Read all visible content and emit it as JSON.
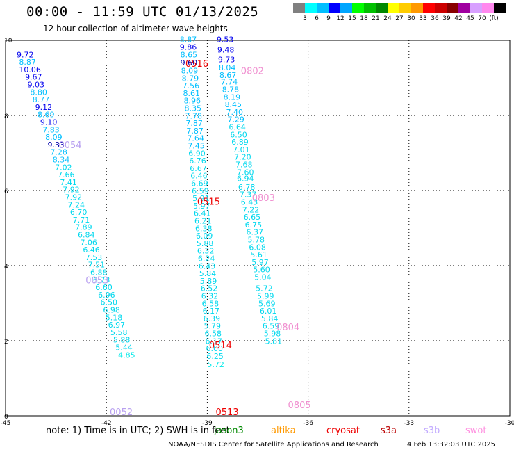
{
  "header": {
    "title": "00:00 - 11:59 UTC 01/13/2025",
    "subtitle": "12 hour collection of altimeter wave heights"
  },
  "colorbar": {
    "colors": [
      "#808080",
      "#00ffff",
      "#00bfff",
      "#0000ff",
      "#00a6ff",
      "#00ff00",
      "#00c000",
      "#008800",
      "#ffff00",
      "#ffcc00",
      "#ff9900",
      "#ff0000",
      "#cc0000",
      "#880000",
      "#a000a0",
      "#d8a0ff",
      "#ff88ee",
      "#000000"
    ],
    "labels": [
      "3",
      "6",
      "9",
      "12",
      "15",
      "18",
      "21",
      "24",
      "27",
      "30",
      "33",
      "36",
      "39",
      "42",
      "45",
      "70",
      "(ft)"
    ]
  },
  "chart_data": {
    "type": "scatter",
    "xlim": [
      -45,
      -30
    ],
    "ylim": [
      0,
      10
    ],
    "x_ticks": [
      "-45",
      "-42",
      "-39",
      "-36",
      "-33",
      "-30"
    ],
    "y_ticks": [
      "0",
      "2",
      "4",
      "6",
      "8",
      "10"
    ],
    "grid": true,
    "colors": {
      "c1": "#00bfff",
      "c2": "#0000ee",
      "c3": "#0000aa",
      "c4": "#00d8ee",
      "c5": "#00e8e8",
      "red": "#ee0000",
      "violet": "#b8a0f0",
      "pink": "#f090d0"
    },
    "tracks": [
      {
        "name": "track-a",
        "points": [
          {
            "x": -44.67,
            "y": 9.55,
            "v": "9.72",
            "c": "c2"
          },
          {
            "x": -44.6,
            "y": 9.35,
            "v": "8.87",
            "c": "c1"
          },
          {
            "x": -44.6,
            "y": 9.15,
            "v": "10.06",
            "c": "c2"
          },
          {
            "x": -44.42,
            "y": 8.95,
            "v": "9.67",
            "c": "c2"
          },
          {
            "x": -44.35,
            "y": 8.75,
            "v": "9.03",
            "c": "c2"
          },
          {
            "x": -44.27,
            "y": 8.55,
            "v": "8.80",
            "c": "c1"
          },
          {
            "x": -44.2,
            "y": 8.35,
            "v": "8.77",
            "c": "c1"
          },
          {
            "x": -44.12,
            "y": 8.15,
            "v": "9.12",
            "c": "c2"
          },
          {
            "x": -44.05,
            "y": 7.95,
            "v": "8.69",
            "c": "c1"
          },
          {
            "x": -43.97,
            "y": 7.75,
            "v": "9.10",
            "c": "c2"
          },
          {
            "x": -43.9,
            "y": 7.55,
            "v": "7.83",
            "c": "c1"
          },
          {
            "x": -43.82,
            "y": 7.35,
            "v": "8.09",
            "c": "c1"
          },
          {
            "x": -43.75,
            "y": 7.15,
            "v": "9.33",
            "c": "c3"
          },
          {
            "x": -43.67,
            "y": 6.95,
            "v": "7.28",
            "c": "c1"
          },
          {
            "x": -43.6,
            "y": 6.75,
            "v": "8.34",
            "c": "c1"
          },
          {
            "x": -43.53,
            "y": 6.55,
            "v": "7.02",
            "c": "c4"
          },
          {
            "x": -43.45,
            "y": 6.35,
            "v": "7.66",
            "c": "c4"
          },
          {
            "x": -43.38,
            "y": 6.15,
            "v": "7.41",
            "c": "c4"
          },
          {
            "x": -43.3,
            "y": 5.95,
            "v": "7.92",
            "c": "c4"
          },
          {
            "x": -43.23,
            "y": 5.75,
            "v": "7.92",
            "c": "c4"
          },
          {
            "x": -43.15,
            "y": 5.55,
            "v": "7.24",
            "c": "c4"
          },
          {
            "x": -43.08,
            "y": 5.35,
            "v": "6.70",
            "c": "c4"
          },
          {
            "x": -43.0,
            "y": 5.15,
            "v": "7.71",
            "c": "c4"
          },
          {
            "x": -42.93,
            "y": 4.95,
            "v": "7.89",
            "c": "c4"
          },
          {
            "x": -42.85,
            "y": 4.75,
            "v": "6.84",
            "c": "c4"
          },
          {
            "x": -42.78,
            "y": 4.55,
            "v": "7.06",
            "c": "c4"
          },
          {
            "x": -42.7,
            "y": 4.35,
            "v": "6.46",
            "c": "c4"
          },
          {
            "x": -42.63,
            "y": 4.15,
            "v": "7.53",
            "c": "c4"
          },
          {
            "x": -42.55,
            "y": 3.95,
            "v": "7.51",
            "c": "c4"
          },
          {
            "x": -42.48,
            "y": 3.75,
            "v": "6.88",
            "c": "c4"
          },
          {
            "x": -42.4,
            "y": 3.55,
            "v": "6.73",
            "c": "c4"
          },
          {
            "x": -42.33,
            "y": 3.35,
            "v": "6.60",
            "c": "c4"
          },
          {
            "x": -42.25,
            "y": 3.15,
            "v": "6.96",
            "c": "c4"
          },
          {
            "x": -42.18,
            "y": 2.95,
            "v": "6.50",
            "c": "c4"
          },
          {
            "x": -42.1,
            "y": 2.75,
            "v": "6.98",
            "c": "c4"
          },
          {
            "x": -42.03,
            "y": 2.55,
            "v": "5.18",
            "c": "c4"
          },
          {
            "x": -41.95,
            "y": 2.35,
            "v": "6.97",
            "c": "c4"
          },
          {
            "x": -41.88,
            "y": 2.15,
            "v": "5.58",
            "c": "c4"
          },
          {
            "x": -41.8,
            "y": 1.95,
            "v": "5.88",
            "c": "c4"
          },
          {
            "x": -41.73,
            "y": 1.75,
            "v": "5.44",
            "c": "c4"
          },
          {
            "x": -41.65,
            "y": 1.55,
            "v": "4.85",
            "c": "c5"
          }
        ]
      },
      {
        "name": "track-b",
        "points": [
          {
            "x": -39.82,
            "y": 9.95,
            "v": "8.87",
            "c": "c1"
          },
          {
            "x": -39.82,
            "y": 9.75,
            "v": "9.86",
            "c": "c2"
          },
          {
            "x": -39.8,
            "y": 9.55,
            "v": "8.65",
            "c": "c1"
          },
          {
            "x": -39.8,
            "y": 9.33,
            "v": "9.60",
            "c": "c3"
          },
          {
            "x": -39.78,
            "y": 9.12,
            "v": "8.09",
            "c": "c1"
          },
          {
            "x": -39.76,
            "y": 8.92,
            "v": "8.79",
            "c": "c1"
          },
          {
            "x": -39.74,
            "y": 8.72,
            "v": "7.56",
            "c": "c1"
          },
          {
            "x": -39.72,
            "y": 8.52,
            "v": "8.61",
            "c": "c1"
          },
          {
            "x": -39.7,
            "y": 8.32,
            "v": "8.96",
            "c": "c1"
          },
          {
            "x": -39.68,
            "y": 8.12,
            "v": "8.35",
            "c": "c1"
          },
          {
            "x": -39.66,
            "y": 7.92,
            "v": "7.78",
            "c": "c1"
          },
          {
            "x": -39.64,
            "y": 7.72,
            "v": "7.87",
            "c": "c1"
          },
          {
            "x": -39.62,
            "y": 7.52,
            "v": "7.87",
            "c": "c1"
          },
          {
            "x": -39.6,
            "y": 7.32,
            "v": "7.64",
            "c": "c1"
          },
          {
            "x": -39.58,
            "y": 7.12,
            "v": "7.45",
            "c": "c1"
          },
          {
            "x": -39.56,
            "y": 6.92,
            "v": "6.90",
            "c": "c4"
          },
          {
            "x": -39.54,
            "y": 6.72,
            "v": "6.76",
            "c": "c4"
          },
          {
            "x": -39.52,
            "y": 6.52,
            "v": "6.67",
            "c": "c4"
          },
          {
            "x": -39.5,
            "y": 6.32,
            "v": "6.46",
            "c": "c4"
          },
          {
            "x": -39.48,
            "y": 6.12,
            "v": "6.69",
            "c": "c4"
          },
          {
            "x": -39.46,
            "y": 5.92,
            "v": "6.59",
            "c": "c4"
          },
          {
            "x": -39.44,
            "y": 5.72,
            "v": "5.91",
            "c": "c4"
          },
          {
            "x": -39.42,
            "y": 5.52,
            "v": "5.97",
            "c": "c4"
          },
          {
            "x": -39.4,
            "y": 5.32,
            "v": "6.41",
            "c": "c4"
          },
          {
            "x": -39.38,
            "y": 5.12,
            "v": "6.21",
            "c": "c4"
          },
          {
            "x": -39.36,
            "y": 4.92,
            "v": "6.38",
            "c": "c4"
          },
          {
            "x": -39.34,
            "y": 4.72,
            "v": "6.09",
            "c": "c4"
          },
          {
            "x": -39.32,
            "y": 4.52,
            "v": "5.88",
            "c": "c4"
          },
          {
            "x": -39.3,
            "y": 4.32,
            "v": "6.32",
            "c": "c4"
          },
          {
            "x": -39.28,
            "y": 4.12,
            "v": "6.24",
            "c": "c4"
          },
          {
            "x": -39.26,
            "y": 3.92,
            "v": "6.43",
            "c": "c4"
          },
          {
            "x": -39.24,
            "y": 3.72,
            "v": "5.84",
            "c": "c4"
          },
          {
            "x": -39.22,
            "y": 3.52,
            "v": "5.89",
            "c": "c4"
          },
          {
            "x": -39.2,
            "y": 3.32,
            "v": "6.52",
            "c": "c4"
          },
          {
            "x": -39.18,
            "y": 3.12,
            "v": "6.32",
            "c": "c4"
          },
          {
            "x": -39.16,
            "y": 2.92,
            "v": "6.58",
            "c": "c4"
          },
          {
            "x": -39.14,
            "y": 2.72,
            "v": "6.17",
            "c": "c4"
          },
          {
            "x": -39.12,
            "y": 2.52,
            "v": "6.39",
            "c": "c4"
          },
          {
            "x": -39.1,
            "y": 2.32,
            "v": "5.79",
            "c": "c4"
          },
          {
            "x": -39.08,
            "y": 2.12,
            "v": "6.58",
            "c": "c4"
          },
          {
            "x": -39.06,
            "y": 1.92,
            "v": "6.17",
            "c": "c4"
          },
          {
            "x": -39.04,
            "y": 1.72,
            "v": "6.00",
            "c": "c4"
          },
          {
            "x": -39.02,
            "y": 1.52,
            "v": "6.25",
            "c": "c4"
          },
          {
            "x": -39.0,
            "y": 1.3,
            "v": "5.72",
            "c": "c5"
          }
        ]
      },
      {
        "name": "track-c",
        "points": [
          {
            "x": -38.72,
            "y": 9.95,
            "v": "9.53",
            "c": "c2"
          },
          {
            "x": -38.7,
            "y": 9.68,
            "v": "9.48",
            "c": "c2"
          },
          {
            "x": -38.68,
            "y": 9.42,
            "v": "9.73",
            "c": "c2"
          },
          {
            "x": -38.66,
            "y": 9.2,
            "v": "8.04",
            "c": "c1"
          },
          {
            "x": -38.64,
            "y": 9.0,
            "v": "8.67",
            "c": "c1"
          },
          {
            "x": -38.6,
            "y": 8.82,
            "v": "7.74",
            "c": "c1"
          },
          {
            "x": -38.56,
            "y": 8.62,
            "v": "8.78",
            "c": "c1"
          },
          {
            "x": -38.52,
            "y": 8.42,
            "v": "8.19",
            "c": "c1"
          },
          {
            "x": -38.48,
            "y": 8.22,
            "v": "8.45",
            "c": "c1"
          },
          {
            "x": -38.44,
            "y": 8.02,
            "v": "7.40",
            "c": "c1"
          },
          {
            "x": -38.4,
            "y": 7.82,
            "v": "7.29",
            "c": "c1"
          },
          {
            "x": -38.36,
            "y": 7.62,
            "v": "6.64",
            "c": "c4"
          },
          {
            "x": -38.32,
            "y": 7.42,
            "v": "6.50",
            "c": "c4"
          },
          {
            "x": -38.28,
            "y": 7.22,
            "v": "6.89",
            "c": "c4"
          },
          {
            "x": -38.24,
            "y": 7.02,
            "v": "7.01",
            "c": "c4"
          },
          {
            "x": -38.2,
            "y": 6.82,
            "v": "7.20",
            "c": "c4"
          },
          {
            "x": -38.16,
            "y": 6.62,
            "v": "7.68",
            "c": "c4"
          },
          {
            "x": -38.12,
            "y": 6.42,
            "v": "7.60",
            "c": "c4"
          },
          {
            "x": -38.12,
            "y": 6.25,
            "v": "6.94",
            "c": "c4"
          },
          {
            "x": -38.08,
            "y": 6.02,
            "v": "6.78",
            "c": "c4"
          },
          {
            "x": -38.04,
            "y": 5.82,
            "v": "7.37",
            "c": "c4"
          },
          {
            "x": -38.0,
            "y": 5.62,
            "v": "6.43",
            "c": "c4"
          },
          {
            "x": -37.96,
            "y": 5.42,
            "v": "7.22",
            "c": "c4"
          },
          {
            "x": -37.92,
            "y": 5.22,
            "v": "6.65",
            "c": "c4"
          },
          {
            "x": -37.88,
            "y": 5.02,
            "v": "6.75",
            "c": "c4"
          },
          {
            "x": -37.84,
            "y": 4.82,
            "v": "6.37",
            "c": "c4"
          },
          {
            "x": -37.8,
            "y": 4.62,
            "v": "5.78",
            "c": "c4"
          },
          {
            "x": -37.76,
            "y": 4.42,
            "v": "6.08",
            "c": "c4"
          },
          {
            "x": -37.72,
            "y": 4.22,
            "v": "5.61",
            "c": "c4"
          },
          {
            "x": -37.68,
            "y": 4.02,
            "v": "5.97",
            "c": "c4"
          },
          {
            "x": -37.64,
            "y": 3.82,
            "v": "5.60",
            "c": "c4"
          },
          {
            "x": -37.6,
            "y": 3.62,
            "v": "5.04",
            "c": "c4"
          },
          {
            "x": -37.56,
            "y": 3.32,
            "v": "5.72",
            "c": "c4"
          },
          {
            "x": -37.52,
            "y": 3.12,
            "v": "5.99",
            "c": "c4"
          },
          {
            "x": -37.48,
            "y": 2.92,
            "v": "5.69",
            "c": "c4"
          },
          {
            "x": -37.44,
            "y": 2.72,
            "v": "6.01",
            "c": "c4"
          },
          {
            "x": -37.4,
            "y": 2.52,
            "v": "5.84",
            "c": "c4"
          },
          {
            "x": -37.36,
            "y": 2.32,
            "v": "6.59",
            "c": "c4"
          },
          {
            "x": -37.32,
            "y": 2.12,
            "v": "5.98",
            "c": "c4"
          },
          {
            "x": -37.28,
            "y": 1.92,
            "v": "5.81",
            "c": "c4"
          }
        ]
      }
    ],
    "time_labels": [
      {
        "x": -39.65,
        "y": 9.3,
        "text": "0516",
        "c": "red"
      },
      {
        "x": -38.0,
        "y": 9.1,
        "text": "0802",
        "c": "pink"
      },
      {
        "x": -43.42,
        "y": 7.13,
        "text": "0054",
        "c": "violet"
      },
      {
        "x": -39.3,
        "y": 5.62,
        "text": "0515",
        "c": "red"
      },
      {
        "x": -37.67,
        "y": 5.72,
        "text": "0803",
        "c": "pink"
      },
      {
        "x": -42.62,
        "y": 3.53,
        "text": "0053",
        "c": "violet"
      },
      {
        "x": -36.94,
        "y": 2.28,
        "text": "0804",
        "c": "pink"
      },
      {
        "x": -38.95,
        "y": 1.8,
        "text": "0514",
        "c": "red"
      },
      {
        "x": -36.6,
        "y": 0.2,
        "text": "0805",
        "c": "pink"
      },
      {
        "x": -41.9,
        "y": 0.02,
        "text": "0052",
        "c": "violet"
      },
      {
        "x": -38.75,
        "y": 0.02,
        "text": "0513",
        "c": "red"
      }
    ]
  },
  "notes": {
    "text": "note: 1) Time is in UTC; 2) SWH is in feet",
    "satellites": [
      {
        "name": "jason3",
        "color": "#008800"
      },
      {
        "name": "altika",
        "color": "#ff9900"
      },
      {
        "name": "cryosat",
        "color": "#ee0000"
      },
      {
        "name": "s3a",
        "color": "#bb0000"
      },
      {
        "name": "s3b",
        "color": "#c0a8ff"
      },
      {
        "name": "swot",
        "color": "#ff90e0"
      }
    ]
  },
  "footer": {
    "credit": "NOAA/NESDIS Center for Satellite Applications and Research",
    "timestamp": "4 Feb 13:32:03 UTC 2025"
  }
}
